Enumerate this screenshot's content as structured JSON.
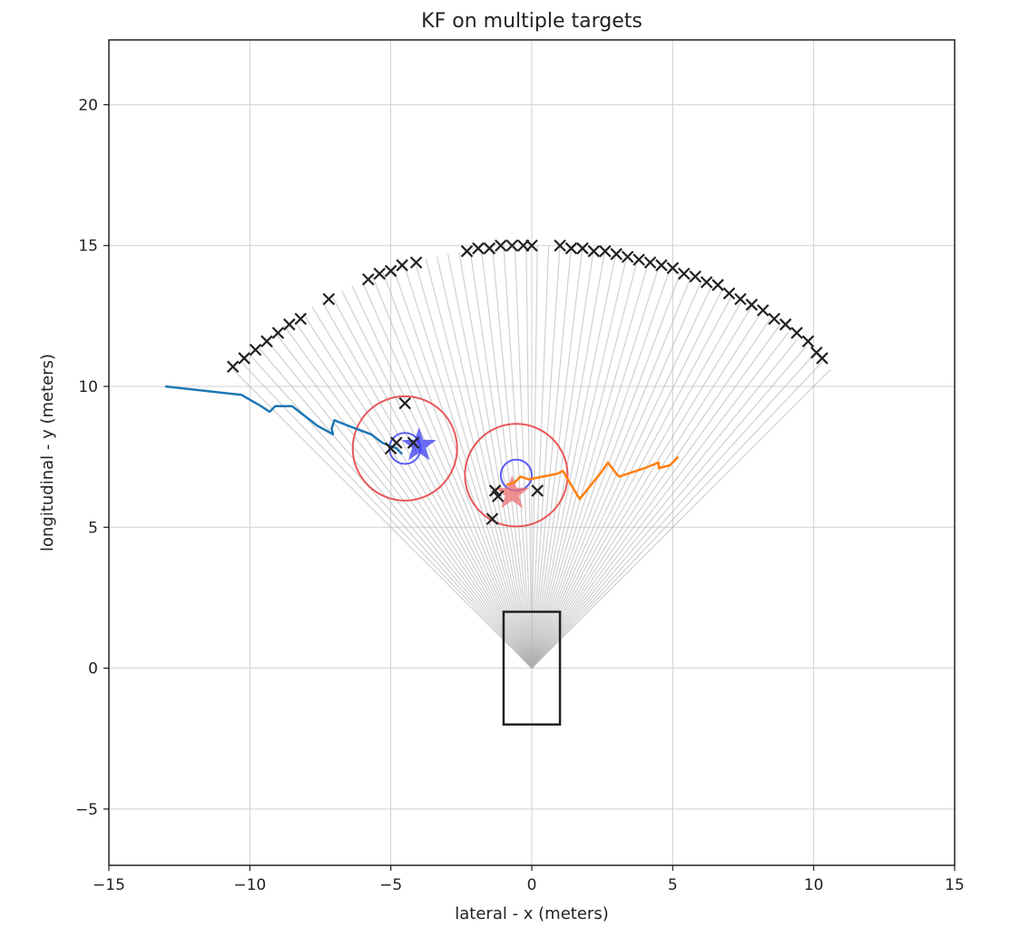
{
  "chart_data": {
    "type": "scatter",
    "title": "KF on multiple targets",
    "xlabel": "lateral - x (meters)",
    "ylabel": "longitudinal - y (meters)",
    "xlim": [
      -15,
      15
    ],
    "ylim": [
      -7,
      22.3
    ],
    "xticks": [
      -15,
      -10,
      -5,
      0,
      5,
      10,
      15
    ],
    "xtick_labels": [
      "−15",
      "−10",
      "−5",
      "0",
      "5",
      "10",
      "15"
    ],
    "yticks": [
      -5,
      0,
      5,
      10,
      15,
      20
    ],
    "ytick_labels": [
      "−5",
      "0",
      "5",
      "10",
      "15",
      "20"
    ],
    "grid": true,
    "sensor": {
      "origin": [
        0,
        0
      ],
      "range": 15,
      "fov_deg_half": 45,
      "beam_count": 60
    },
    "ego_vehicle": {
      "x": [
        -1,
        1
      ],
      "y": [
        -2,
        2
      ],
      "color": "#222222"
    },
    "detections": {
      "marker": "x",
      "color": "#222222",
      "points": [
        [
          -10.6,
          10.7
        ],
        [
          -10.2,
          11.0
        ],
        [
          -9.8,
          11.3
        ],
        [
          -9.4,
          11.6
        ],
        [
          -9.0,
          11.9
        ],
        [
          -8.6,
          12.2
        ],
        [
          -8.2,
          12.4
        ],
        [
          -7.2,
          13.1
        ],
        [
          -5.8,
          13.8
        ],
        [
          -5.4,
          14.0
        ],
        [
          -5.0,
          14.1
        ],
        [
          -4.6,
          14.3
        ],
        [
          -4.1,
          14.4
        ],
        [
          -2.3,
          14.8
        ],
        [
          -1.9,
          14.9
        ],
        [
          -1.5,
          14.9
        ],
        [
          -1.1,
          15.0
        ],
        [
          -0.7,
          15.0
        ],
        [
          -0.3,
          15.0
        ],
        [
          0.0,
          15.0
        ],
        [
          1.0,
          15.0
        ],
        [
          1.4,
          14.9
        ],
        [
          1.8,
          14.9
        ],
        [
          2.2,
          14.8
        ],
        [
          2.6,
          14.8
        ],
        [
          3.0,
          14.7
        ],
        [
          3.4,
          14.6
        ],
        [
          3.8,
          14.5
        ],
        [
          4.2,
          14.4
        ],
        [
          4.6,
          14.3
        ],
        [
          5.0,
          14.2
        ],
        [
          5.4,
          14.0
        ],
        [
          5.8,
          13.9
        ],
        [
          6.2,
          13.7
        ],
        [
          6.6,
          13.6
        ],
        [
          7.0,
          13.3
        ],
        [
          7.4,
          13.1
        ],
        [
          7.8,
          12.9
        ],
        [
          8.2,
          12.7
        ],
        [
          8.6,
          12.4
        ],
        [
          9.0,
          12.2
        ],
        [
          9.4,
          11.9
        ],
        [
          9.8,
          11.6
        ],
        [
          10.1,
          11.2
        ],
        [
          10.3,
          11.0
        ],
        [
          -4.5,
          9.4
        ],
        [
          -4.8,
          8.0
        ],
        [
          -5.0,
          7.8
        ],
        [
          -4.2,
          8.0
        ],
        [
          -1.3,
          6.3
        ],
        [
          -1.2,
          6.1
        ],
        [
          -1.4,
          5.3
        ],
        [
          0.2,
          6.3
        ]
      ]
    },
    "series": [
      {
        "color": "#1f77b4",
        "x": [
          -13.0,
          -10.3,
          -9.6,
          -9.3,
          -9.1,
          -8.8,
          -8.5,
          -7.6,
          -7.05,
          -7.1,
          -7.0,
          -6.5,
          -5.7,
          -5.3,
          -4.8,
          -4.6
        ],
        "y": [
          10.0,
          9.7,
          9.3,
          9.1,
          9.3,
          9.3,
          9.3,
          8.6,
          8.3,
          8.5,
          8.8,
          8.6,
          8.3,
          8.0,
          7.8,
          7.6
        ]
      },
      {
        "color": "#ff7f0e",
        "x": [
          -0.9,
          -0.6,
          -0.4,
          -0.1,
          0.4,
          0.9,
          1.1,
          1.7,
          2.1,
          2.5,
          2.7,
          3.0,
          3.1,
          4.0,
          4.5,
          4.5,
          4.9,
          5.2
        ],
        "y": [
          6.5,
          6.6,
          6.8,
          6.7,
          6.8,
          6.9,
          7.0,
          6.0,
          6.5,
          7.0,
          7.3,
          6.9,
          6.8,
          7.1,
          7.3,
          7.1,
          7.2,
          7.5
        ]
      }
    ],
    "tracks": [
      {
        "center": [
          -4.5,
          7.8
        ],
        "gate_radius": 1.85,
        "gate_color": "#e8585a",
        "est_radius": 0.55,
        "est_color": "#5a5ef2",
        "star": [
          -4.0,
          7.9
        ],
        "star_color": "#3b3bf0"
      },
      {
        "center": [
          -0.55,
          6.85
        ],
        "gate_radius": 1.82,
        "gate_color": "#e8585a",
        "est_radius": 0.55,
        "est_color": "#5a5ef2",
        "star": [
          -0.7,
          6.2
        ],
        "star_color": "#ec6d6d"
      }
    ]
  }
}
